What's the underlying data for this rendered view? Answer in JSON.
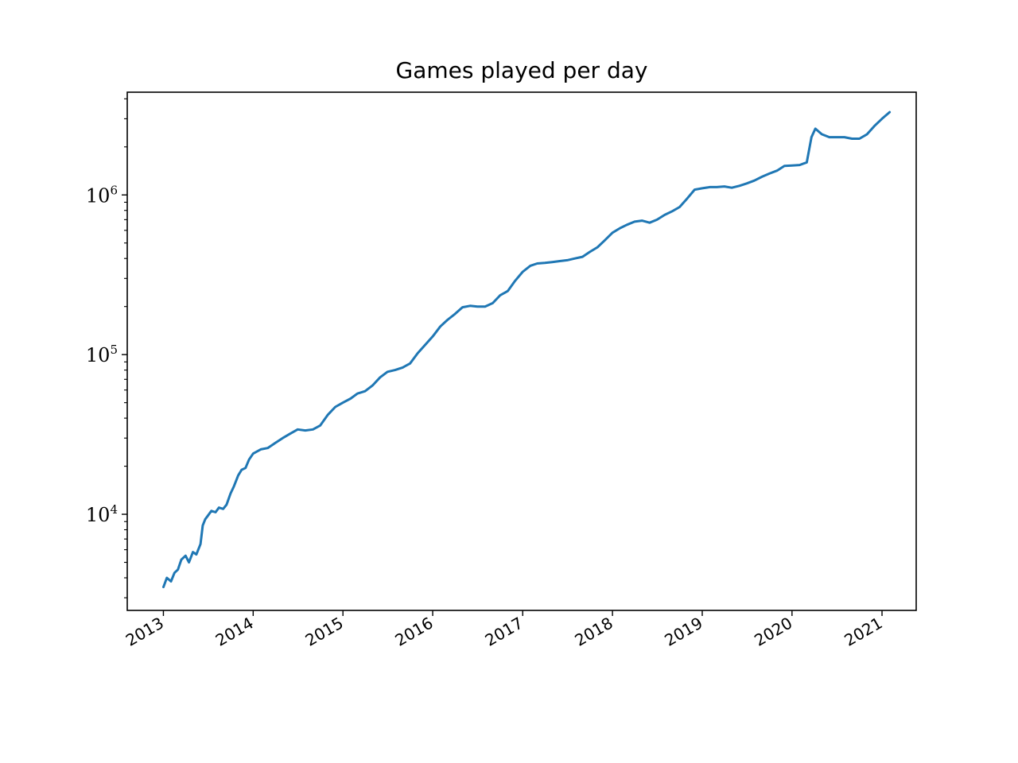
{
  "chart_data": {
    "type": "line",
    "title": "Games played per day",
    "xlabel": "",
    "ylabel": "",
    "yscale": "log",
    "xlim": [
      "2012-08-07",
      "2021-05-20"
    ],
    "ylim": [
      2500,
      4400000
    ],
    "grid": false,
    "x_ticks": [
      "2013",
      "2014",
      "2015",
      "2016",
      "2017",
      "2018",
      "2019",
      "2020",
      "2021"
    ],
    "y_ticks": [
      {
        "base": "10",
        "exp": "4",
        "value": 10000
      },
      {
        "base": "10",
        "exp": "5",
        "value": 100000
      },
      {
        "base": "10",
        "exp": "6",
        "value": 1000000
      }
    ],
    "series": [
      {
        "color": "#1f77b4",
        "points": [
          [
            "2013-01-01",
            3500
          ],
          [
            "2013-01-15",
            4000
          ],
          [
            "2013-02-01",
            3800
          ],
          [
            "2013-02-15",
            4300
          ],
          [
            "2013-03-01",
            4500
          ],
          [
            "2013-03-15",
            5200
          ],
          [
            "2013-04-01",
            5500
          ],
          [
            "2013-04-15",
            5000
          ],
          [
            "2013-05-01",
            5800
          ],
          [
            "2013-05-15",
            5600
          ],
          [
            "2013-06-01",
            6500
          ],
          [
            "2013-06-10",
            8500
          ],
          [
            "2013-06-20",
            9300
          ],
          [
            "2013-07-01",
            9800
          ],
          [
            "2013-07-15",
            10500
          ],
          [
            "2013-08-01",
            10300
          ],
          [
            "2013-08-15",
            11000
          ],
          [
            "2013-09-01",
            10800
          ],
          [
            "2013-09-15",
            11500
          ],
          [
            "2013-10-01",
            13500
          ],
          [
            "2013-10-15",
            15000
          ],
          [
            "2013-11-01",
            17500
          ],
          [
            "2013-11-15",
            19000
          ],
          [
            "2013-12-01",
            19500
          ],
          [
            "2013-12-15",
            22000
          ],
          [
            "2014-01-01",
            24000
          ],
          [
            "2014-02-01",
            25500
          ],
          [
            "2014-03-01",
            26000
          ],
          [
            "2014-04-01",
            28000
          ],
          [
            "2014-05-01",
            30000
          ],
          [
            "2014-06-01",
            32000
          ],
          [
            "2014-07-01",
            34000
          ],
          [
            "2014-08-01",
            33500
          ],
          [
            "2014-09-01",
            34000
          ],
          [
            "2014-10-01",
            36000
          ],
          [
            "2014-11-01",
            42000
          ],
          [
            "2014-12-01",
            47000
          ],
          [
            "2015-01-01",
            50000
          ],
          [
            "2015-02-01",
            53000
          ],
          [
            "2015-03-01",
            57000
          ],
          [
            "2015-04-01",
            59000
          ],
          [
            "2015-05-01",
            64000
          ],
          [
            "2015-06-01",
            72000
          ],
          [
            "2015-07-01",
            78000
          ],
          [
            "2015-08-01",
            80000
          ],
          [
            "2015-09-01",
            83000
          ],
          [
            "2015-10-01",
            88000
          ],
          [
            "2015-11-01",
            102000
          ],
          [
            "2015-12-01",
            115000
          ],
          [
            "2016-01-01",
            130000
          ],
          [
            "2016-02-01",
            150000
          ],
          [
            "2016-03-01",
            165000
          ],
          [
            "2016-04-01",
            180000
          ],
          [
            "2016-05-01",
            198000
          ],
          [
            "2016-06-01",
            202000
          ],
          [
            "2016-07-01",
            200000
          ],
          [
            "2016-08-01",
            200000
          ],
          [
            "2016-09-01",
            210000
          ],
          [
            "2016-10-01",
            235000
          ],
          [
            "2016-11-01",
            250000
          ],
          [
            "2016-12-01",
            290000
          ],
          [
            "2017-01-01",
            330000
          ],
          [
            "2017-02-01",
            360000
          ],
          [
            "2017-03-01",
            372000
          ],
          [
            "2017-04-01",
            375000
          ],
          [
            "2017-05-01",
            380000
          ],
          [
            "2017-06-01",
            385000
          ],
          [
            "2017-07-01",
            390000
          ],
          [
            "2017-08-01",
            400000
          ],
          [
            "2017-09-01",
            410000
          ],
          [
            "2017-10-01",
            440000
          ],
          [
            "2017-11-01",
            470000
          ],
          [
            "2017-12-01",
            520000
          ],
          [
            "2018-01-01",
            580000
          ],
          [
            "2018-02-01",
            620000
          ],
          [
            "2018-03-01",
            650000
          ],
          [
            "2018-04-01",
            680000
          ],
          [
            "2018-05-01",
            690000
          ],
          [
            "2018-06-01",
            670000
          ],
          [
            "2018-07-01",
            700000
          ],
          [
            "2018-08-01",
            750000
          ],
          [
            "2018-09-01",
            790000
          ],
          [
            "2018-10-01",
            840000
          ],
          [
            "2018-11-01",
            950000
          ],
          [
            "2018-12-01",
            1080000
          ],
          [
            "2019-01-01",
            1100000
          ],
          [
            "2019-02-01",
            1120000
          ],
          [
            "2019-03-01",
            1120000
          ],
          [
            "2019-04-01",
            1130000
          ],
          [
            "2019-05-01",
            1110000
          ],
          [
            "2019-06-01",
            1140000
          ],
          [
            "2019-07-01",
            1180000
          ],
          [
            "2019-08-01",
            1230000
          ],
          [
            "2019-09-01",
            1300000
          ],
          [
            "2019-10-01",
            1360000
          ],
          [
            "2019-11-01",
            1420000
          ],
          [
            "2019-12-01",
            1520000
          ],
          [
            "2020-01-01",
            1530000
          ],
          [
            "2020-02-01",
            1540000
          ],
          [
            "2020-03-01",
            1600000
          ],
          [
            "2020-03-20",
            2300000
          ],
          [
            "2020-04-05",
            2600000
          ],
          [
            "2020-05-01",
            2400000
          ],
          [
            "2020-06-01",
            2300000
          ],
          [
            "2020-07-01",
            2300000
          ],
          [
            "2020-08-01",
            2300000
          ],
          [
            "2020-09-01",
            2250000
          ],
          [
            "2020-10-01",
            2250000
          ],
          [
            "2020-11-01",
            2400000
          ],
          [
            "2020-12-01",
            2700000
          ],
          [
            "2021-01-01",
            3000000
          ],
          [
            "2021-02-01",
            3300000
          ]
        ]
      }
    ]
  }
}
